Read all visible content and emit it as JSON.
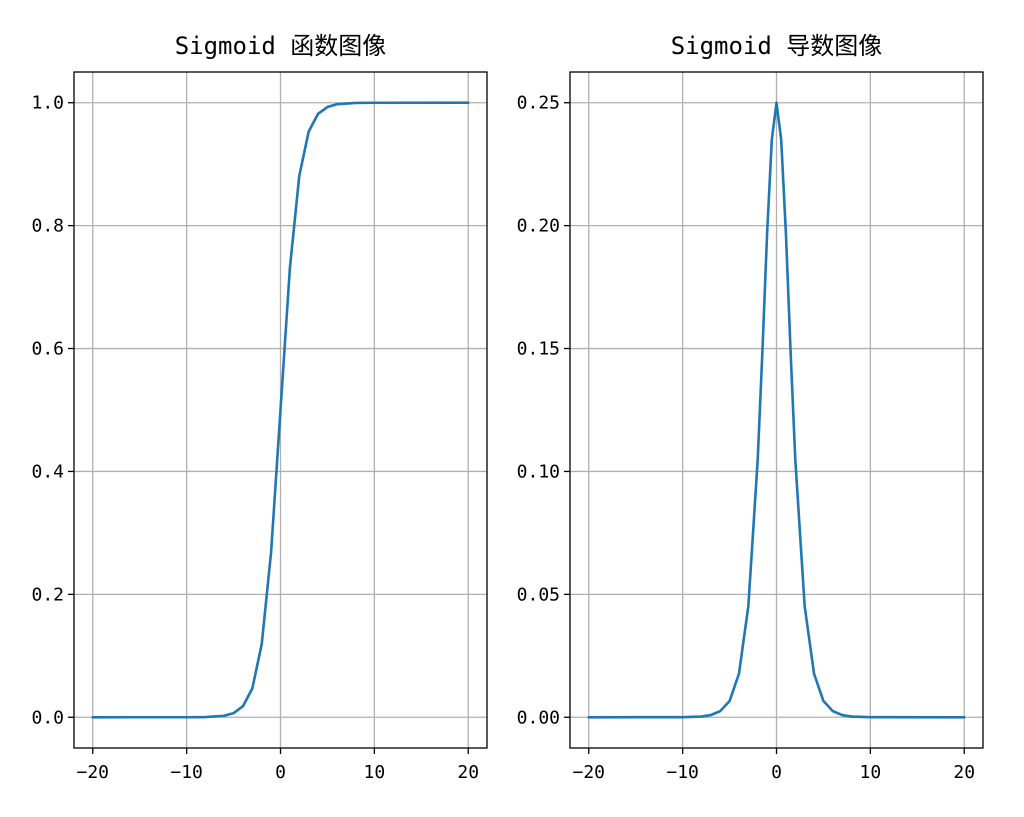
{
  "chart_data": [
    {
      "type": "line",
      "title": "Sigmoid 函数图像",
      "xlim": [
        -22,
        22
      ],
      "ylim": [
        -0.05,
        1.05
      ],
      "x_ticks": [
        -20,
        -10,
        0,
        10,
        20
      ],
      "x_tick_labels": [
        "−20",
        "−10",
        "0",
        "10",
        "20"
      ],
      "y_ticks": [
        0.0,
        0.2,
        0.4,
        0.6,
        0.8,
        1.0
      ],
      "y_tick_labels": [
        "0.0",
        "0.2",
        "0.4",
        "0.6",
        "0.8",
        "1.0"
      ],
      "grid": true,
      "series": [
        {
          "color": "#1f77b4",
          "x": [
            -20,
            -10,
            -8,
            -6,
            -5,
            -4,
            -3,
            -2,
            -1,
            0,
            1,
            2,
            3,
            4,
            5,
            6,
            8,
            10,
            20
          ],
          "y": [
            0.0,
            5e-05,
            0.0003,
            0.0025,
            0.0067,
            0.018,
            0.047,
            0.119,
            0.269,
            0.5,
            0.731,
            0.881,
            0.953,
            0.982,
            0.993,
            0.9975,
            0.9997,
            0.99995,
            1.0
          ]
        }
      ]
    },
    {
      "type": "line",
      "title": "Sigmoid 导数图像",
      "xlim": [
        -22,
        22
      ],
      "ylim": [
        -0.0125,
        0.2625
      ],
      "x_ticks": [
        -20,
        -10,
        0,
        10,
        20
      ],
      "x_tick_labels": [
        "−20",
        "−10",
        "0",
        "10",
        "20"
      ],
      "y_ticks": [
        0.0,
        0.05,
        0.1,
        0.15,
        0.2,
        0.25
      ],
      "y_tick_labels": [
        "0.00",
        "0.05",
        "0.10",
        "0.15",
        "0.20",
        "0.25"
      ],
      "grid": true,
      "series": [
        {
          "color": "#1f77b4",
          "x": [
            -20,
            -10,
            -8,
            -7,
            -6,
            -5,
            -4,
            -3,
            -2,
            -1.5,
            -1,
            -0.5,
            0,
            0.5,
            1,
            1.5,
            2,
            3,
            4,
            5,
            6,
            7,
            8,
            10,
            20
          ],
          "y": [
            0.0,
            5e-05,
            0.0003,
            0.0009,
            0.0025,
            0.0066,
            0.0177,
            0.0452,
            0.105,
            0.149,
            0.197,
            0.235,
            0.25,
            0.235,
            0.197,
            0.149,
            0.105,
            0.0452,
            0.0177,
            0.0066,
            0.0025,
            0.0009,
            0.0003,
            5e-05,
            0.0
          ]
        }
      ]
    }
  ]
}
